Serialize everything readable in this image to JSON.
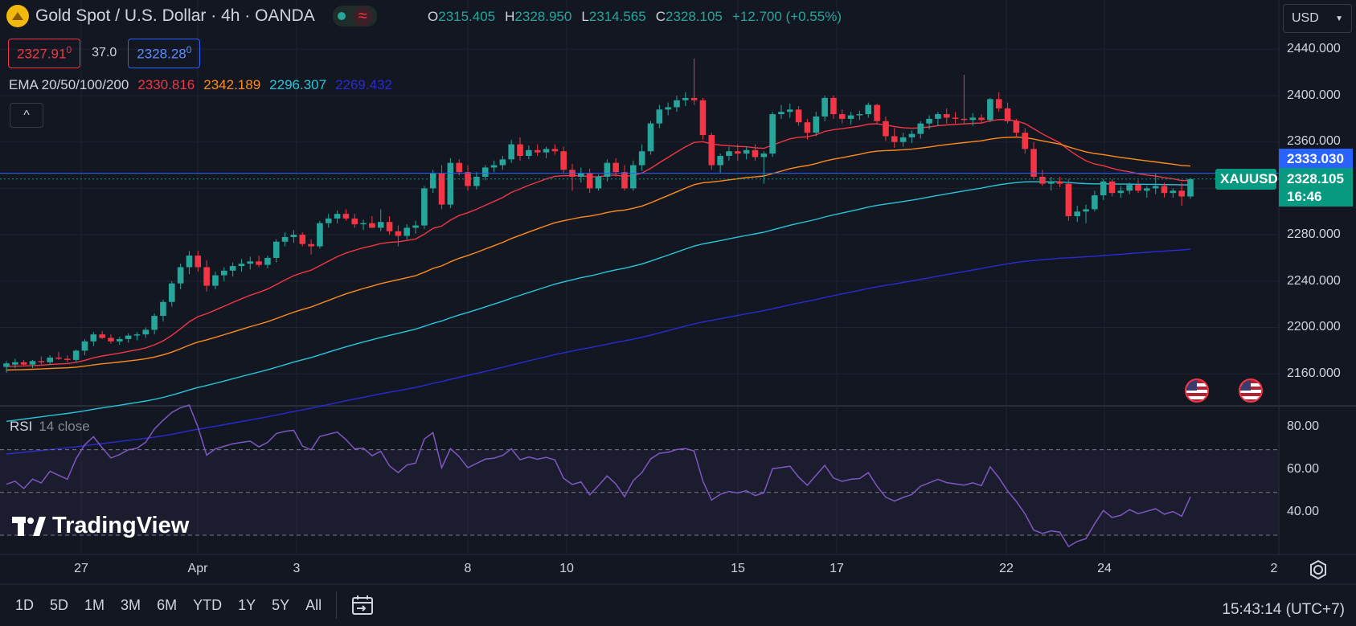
{
  "header": {
    "title": "Gold Spot / U.S. Dollar · 4h · OANDA",
    "status_wave": "≈",
    "ohlc": [
      {
        "label": "O",
        "value": "2315.405"
      },
      {
        "label": "H",
        "value": "2328.950"
      },
      {
        "label": "L",
        "value": "2314.565"
      },
      {
        "label": "C",
        "value": "2328.105"
      }
    ],
    "change": "+12.700 (+0.55%)"
  },
  "trade": {
    "sell_main": "2327.91",
    "sell_sup": "0",
    "spread": "37.0",
    "buy_main": "2328.28",
    "buy_sup": "0"
  },
  "ema_legend": {
    "name": "EMA 20/50/100/200",
    "values": [
      {
        "value": "2330.816",
        "color": "#f23645"
      },
      {
        "value": "2342.189",
        "color": "#ff8c1a"
      },
      {
        "value": "2296.307",
        "color": "#26c6da"
      },
      {
        "value": "2269.432",
        "color": "#2a2ad6"
      }
    ],
    "collapse_glyph": "^"
  },
  "rsi_legend": {
    "name": "RSI",
    "params": "14 close"
  },
  "currency": "USD",
  "price_axis": [
    "2440.000",
    "2400.000",
    "2360.000",
    "2280.000",
    "2240.000",
    "2200.000",
    "2160.000"
  ],
  "rsi_axis": [
    "80.00",
    "60.00",
    "40.00"
  ],
  "price_labels": {
    "symbol": "XAUUSD",
    "bid": "2333.030",
    "last": "2328.105",
    "countdown": "16:46"
  },
  "time_axis": [
    "27",
    "Apr",
    "3",
    "8",
    "10",
    "15",
    "17",
    "22",
    "24",
    "2"
  ],
  "timeframes": [
    "1D",
    "5D",
    "1M",
    "3M",
    "6M",
    "YTD",
    "1Y",
    "5Y",
    "All"
  ],
  "clock": "15:43:14 (UTC+7)",
  "watermark": "TradingView",
  "colors": {
    "up": "#26a69a",
    "down": "#f23645",
    "ema20": "#f23645",
    "ema50": "#ff8c1a",
    "ema100": "#26c6da",
    "ema200": "#2a2ad6",
    "rsi": "#7e57c2",
    "background": "#131722"
  },
  "chart_data": {
    "type": "candlestick",
    "symbol": "XAUUSD",
    "interval": "4h",
    "price_range": [
      2130,
      2450
    ],
    "candles": [
      {
        "o": 2166,
        "h": 2171,
        "l": 2161,
        "c": 2169
      },
      {
        "o": 2168,
        "h": 2173,
        "l": 2165,
        "c": 2170
      },
      {
        "o": 2170,
        "h": 2172,
        "l": 2167,
        "c": 2168
      },
      {
        "o": 2168,
        "h": 2172,
        "l": 2165,
        "c": 2171
      },
      {
        "o": 2171,
        "h": 2175,
        "l": 2168,
        "c": 2170
      },
      {
        "o": 2170,
        "h": 2176,
        "l": 2168,
        "c": 2174
      },
      {
        "o": 2174,
        "h": 2179,
        "l": 2172,
        "c": 2173
      },
      {
        "o": 2173,
        "h": 2176,
        "l": 2170,
        "c": 2172
      },
      {
        "o": 2172,
        "h": 2181,
        "l": 2170,
        "c": 2180
      },
      {
        "o": 2180,
        "h": 2190,
        "l": 2176,
        "c": 2188
      },
      {
        "o": 2188,
        "h": 2196,
        "l": 2184,
        "c": 2194
      },
      {
        "o": 2194,
        "h": 2197,
        "l": 2190,
        "c": 2191
      },
      {
        "o": 2191,
        "h": 2194,
        "l": 2186,
        "c": 2188
      },
      {
        "o": 2188,
        "h": 2192,
        "l": 2185,
        "c": 2190
      },
      {
        "o": 2190,
        "h": 2195,
        "l": 2187,
        "c": 2193
      },
      {
        "o": 2193,
        "h": 2196,
        "l": 2189,
        "c": 2194
      },
      {
        "o": 2194,
        "h": 2200,
        "l": 2191,
        "c": 2198
      },
      {
        "o": 2198,
        "h": 2212,
        "l": 2194,
        "c": 2210
      },
      {
        "o": 2210,
        "h": 2224,
        "l": 2205,
        "c": 2222
      },
      {
        "o": 2222,
        "h": 2240,
        "l": 2218,
        "c": 2238
      },
      {
        "o": 2238,
        "h": 2255,
        "l": 2233,
        "c": 2252
      },
      {
        "o": 2252,
        "h": 2266,
        "l": 2246,
        "c": 2262
      },
      {
        "o": 2262,
        "h": 2266,
        "l": 2248,
        "c": 2252
      },
      {
        "o": 2252,
        "h": 2258,
        "l": 2231,
        "c": 2236
      },
      {
        "o": 2236,
        "h": 2248,
        "l": 2233,
        "c": 2245
      },
      {
        "o": 2245,
        "h": 2252,
        "l": 2240,
        "c": 2249
      },
      {
        "o": 2249,
        "h": 2256,
        "l": 2244,
        "c": 2253
      },
      {
        "o": 2253,
        "h": 2259,
        "l": 2248,
        "c": 2255
      },
      {
        "o": 2255,
        "h": 2261,
        "l": 2250,
        "c": 2257
      },
      {
        "o": 2257,
        "h": 2262,
        "l": 2252,
        "c": 2254
      },
      {
        "o": 2254,
        "h": 2262,
        "l": 2251,
        "c": 2260
      },
      {
        "o": 2260,
        "h": 2276,
        "l": 2256,
        "c": 2274
      },
      {
        "o": 2274,
        "h": 2282,
        "l": 2270,
        "c": 2278
      },
      {
        "o": 2278,
        "h": 2284,
        "l": 2273,
        "c": 2280
      },
      {
        "o": 2280,
        "h": 2282,
        "l": 2270,
        "c": 2272
      },
      {
        "o": 2272,
        "h": 2276,
        "l": 2263,
        "c": 2270
      },
      {
        "o": 2270,
        "h": 2292,
        "l": 2268,
        "c": 2290
      },
      {
        "o": 2290,
        "h": 2298,
        "l": 2286,
        "c": 2294
      },
      {
        "o": 2294,
        "h": 2301,
        "l": 2290,
        "c": 2298
      },
      {
        "o": 2298,
        "h": 2302,
        "l": 2292,
        "c": 2294
      },
      {
        "o": 2294,
        "h": 2298,
        "l": 2286,
        "c": 2289
      },
      {
        "o": 2289,
        "h": 2293,
        "l": 2284,
        "c": 2290
      },
      {
        "o": 2290,
        "h": 2296,
        "l": 2286,
        "c": 2286
      },
      {
        "o": 2286,
        "h": 2302,
        "l": 2283,
        "c": 2291
      },
      {
        "o": 2291,
        "h": 2296,
        "l": 2280,
        "c": 2283
      },
      {
        "o": 2283,
        "h": 2288,
        "l": 2270,
        "c": 2279
      },
      {
        "o": 2279,
        "h": 2289,
        "l": 2276,
        "c": 2286
      },
      {
        "o": 2286,
        "h": 2292,
        "l": 2281,
        "c": 2288
      },
      {
        "o": 2288,
        "h": 2322,
        "l": 2285,
        "c": 2320
      },
      {
        "o": 2320,
        "h": 2336,
        "l": 2316,
        "c": 2333
      },
      {
        "o": 2333,
        "h": 2340,
        "l": 2302,
        "c": 2306
      },
      {
        "o": 2306,
        "h": 2346,
        "l": 2303,
        "c": 2342
      },
      {
        "o": 2342,
        "h": 2345,
        "l": 2331,
        "c": 2334
      },
      {
        "o": 2334,
        "h": 2340,
        "l": 2318,
        "c": 2322
      },
      {
        "o": 2322,
        "h": 2334,
        "l": 2319,
        "c": 2330
      },
      {
        "o": 2330,
        "h": 2340,
        "l": 2327,
        "c": 2338
      },
      {
        "o": 2338,
        "h": 2344,
        "l": 2334,
        "c": 2340
      },
      {
        "o": 2340,
        "h": 2348,
        "l": 2336,
        "c": 2345
      },
      {
        "o": 2345,
        "h": 2362,
        "l": 2342,
        "c": 2358
      },
      {
        "o": 2358,
        "h": 2364,
        "l": 2344,
        "c": 2348
      },
      {
        "o": 2348,
        "h": 2357,
        "l": 2345,
        "c": 2353
      },
      {
        "o": 2353,
        "h": 2358,
        "l": 2348,
        "c": 2351
      },
      {
        "o": 2351,
        "h": 2356,
        "l": 2346,
        "c": 2354
      },
      {
        "o": 2354,
        "h": 2358,
        "l": 2349,
        "c": 2352
      },
      {
        "o": 2352,
        "h": 2356,
        "l": 2333,
        "c": 2336
      },
      {
        "o": 2336,
        "h": 2341,
        "l": 2318,
        "c": 2330
      },
      {
        "o": 2330,
        "h": 2338,
        "l": 2325,
        "c": 2333
      },
      {
        "o": 2333,
        "h": 2337,
        "l": 2316,
        "c": 2320
      },
      {
        "o": 2320,
        "h": 2332,
        "l": 2318,
        "c": 2330
      },
      {
        "o": 2330,
        "h": 2345,
        "l": 2326,
        "c": 2342
      },
      {
        "o": 2342,
        "h": 2346,
        "l": 2330,
        "c": 2334
      },
      {
        "o": 2334,
        "h": 2340,
        "l": 2318,
        "c": 2320
      },
      {
        "o": 2320,
        "h": 2344,
        "l": 2318,
        "c": 2340
      },
      {
        "o": 2340,
        "h": 2358,
        "l": 2335,
        "c": 2352
      },
      {
        "o": 2352,
        "h": 2378,
        "l": 2349,
        "c": 2376
      },
      {
        "o": 2376,
        "h": 2392,
        "l": 2372,
        "c": 2388
      },
      {
        "o": 2388,
        "h": 2394,
        "l": 2383,
        "c": 2390
      },
      {
        "o": 2390,
        "h": 2400,
        "l": 2386,
        "c": 2396
      },
      {
        "o": 2396,
        "h": 2403,
        "l": 2391,
        "c": 2398
      },
      {
        "o": 2398,
        "h": 2432,
        "l": 2392,
        "c": 2396
      },
      {
        "o": 2396,
        "h": 2398,
        "l": 2362,
        "c": 2366
      },
      {
        "o": 2366,
        "h": 2368,
        "l": 2336,
        "c": 2340
      },
      {
        "o": 2340,
        "h": 2350,
        "l": 2333,
        "c": 2348
      },
      {
        "o": 2348,
        "h": 2356,
        "l": 2344,
        "c": 2352
      },
      {
        "o": 2352,
        "h": 2358,
        "l": 2344,
        "c": 2350
      },
      {
        "o": 2350,
        "h": 2356,
        "l": 2345,
        "c": 2353
      },
      {
        "o": 2353,
        "h": 2358,
        "l": 2344,
        "c": 2347
      },
      {
        "o": 2347,
        "h": 2352,
        "l": 2324,
        "c": 2350
      },
      {
        "o": 2350,
        "h": 2386,
        "l": 2347,
        "c": 2384
      },
      {
        "o": 2384,
        "h": 2392,
        "l": 2380,
        "c": 2386
      },
      {
        "o": 2386,
        "h": 2393,
        "l": 2381,
        "c": 2388
      },
      {
        "o": 2388,
        "h": 2391,
        "l": 2374,
        "c": 2377
      },
      {
        "o": 2377,
        "h": 2380,
        "l": 2362,
        "c": 2368
      },
      {
        "o": 2368,
        "h": 2386,
        "l": 2365,
        "c": 2382
      },
      {
        "o": 2382,
        "h": 2400,
        "l": 2378,
        "c": 2398
      },
      {
        "o": 2398,
        "h": 2400,
        "l": 2380,
        "c": 2384
      },
      {
        "o": 2384,
        "h": 2388,
        "l": 2376,
        "c": 2380
      },
      {
        "o": 2380,
        "h": 2386,
        "l": 2375,
        "c": 2383
      },
      {
        "o": 2383,
        "h": 2387,
        "l": 2379,
        "c": 2384
      },
      {
        "o": 2384,
        "h": 2394,
        "l": 2381,
        "c": 2392
      },
      {
        "o": 2392,
        "h": 2393,
        "l": 2375,
        "c": 2378
      },
      {
        "o": 2378,
        "h": 2382,
        "l": 2361,
        "c": 2365
      },
      {
        "o": 2365,
        "h": 2372,
        "l": 2355,
        "c": 2360
      },
      {
        "o": 2360,
        "h": 2368,
        "l": 2356,
        "c": 2364
      },
      {
        "o": 2364,
        "h": 2370,
        "l": 2359,
        "c": 2367
      },
      {
        "o": 2367,
        "h": 2378,
        "l": 2363,
        "c": 2376
      },
      {
        "o": 2376,
        "h": 2383,
        "l": 2371,
        "c": 2380
      },
      {
        "o": 2380,
        "h": 2386,
        "l": 2374,
        "c": 2384
      },
      {
        "o": 2384,
        "h": 2389,
        "l": 2376,
        "c": 2381
      },
      {
        "o": 2381,
        "h": 2386,
        "l": 2376,
        "c": 2380
      },
      {
        "o": 2380,
        "h": 2418,
        "l": 2376,
        "c": 2379
      },
      {
        "o": 2379,
        "h": 2385,
        "l": 2374,
        "c": 2381
      },
      {
        "o": 2381,
        "h": 2384,
        "l": 2376,
        "c": 2379
      },
      {
        "o": 2379,
        "h": 2398,
        "l": 2377,
        "c": 2397
      },
      {
        "o": 2397,
        "h": 2403,
        "l": 2386,
        "c": 2389
      },
      {
        "o": 2389,
        "h": 2394,
        "l": 2376,
        "c": 2378
      },
      {
        "o": 2378,
        "h": 2380,
        "l": 2364,
        "c": 2368
      },
      {
        "o": 2368,
        "h": 2372,
        "l": 2350,
        "c": 2354
      },
      {
        "o": 2354,
        "h": 2360,
        "l": 2328,
        "c": 2330
      },
      {
        "o": 2330,
        "h": 2336,
        "l": 2322,
        "c": 2324
      },
      {
        "o": 2324,
        "h": 2330,
        "l": 2318,
        "c": 2326
      },
      {
        "o": 2326,
        "h": 2330,
        "l": 2321,
        "c": 2324
      },
      {
        "o": 2324,
        "h": 2328,
        "l": 2292,
        "c": 2296
      },
      {
        "o": 2296,
        "h": 2305,
        "l": 2291,
        "c": 2300
      },
      {
        "o": 2300,
        "h": 2306,
        "l": 2290,
        "c": 2302
      },
      {
        "o": 2302,
        "h": 2318,
        "l": 2300,
        "c": 2314
      },
      {
        "o": 2314,
        "h": 2328,
        "l": 2310,
        "c": 2326
      },
      {
        "o": 2326,
        "h": 2328,
        "l": 2313,
        "c": 2316
      },
      {
        "o": 2316,
        "h": 2322,
        "l": 2312,
        "c": 2318
      },
      {
        "o": 2318,
        "h": 2325,
        "l": 2315,
        "c": 2323
      },
      {
        "o": 2323,
        "h": 2327,
        "l": 2316,
        "c": 2318
      },
      {
        "o": 2318,
        "h": 2322,
        "l": 2312,
        "c": 2320
      },
      {
        "o": 2320,
        "h": 2333,
        "l": 2315,
        "c": 2322
      },
      {
        "o": 2322,
        "h": 2325,
        "l": 2312,
        "c": 2316
      },
      {
        "o": 2316,
        "h": 2320,
        "l": 2312,
        "c": 2318
      },
      {
        "o": 2318,
        "h": 2325,
        "l": 2305,
        "c": 2313
      },
      {
        "o": 2313,
        "h": 2329,
        "l": 2311,
        "c": 2328
      }
    ],
    "ema20_end": 2330.816,
    "ema50_end": 2342.189,
    "ema100_end": 2296.307,
    "ema200_end": 2269.432,
    "rsi_range": [
      26,
      88
    ],
    "rsi_levels": [
      70,
      50,
      30
    ]
  }
}
